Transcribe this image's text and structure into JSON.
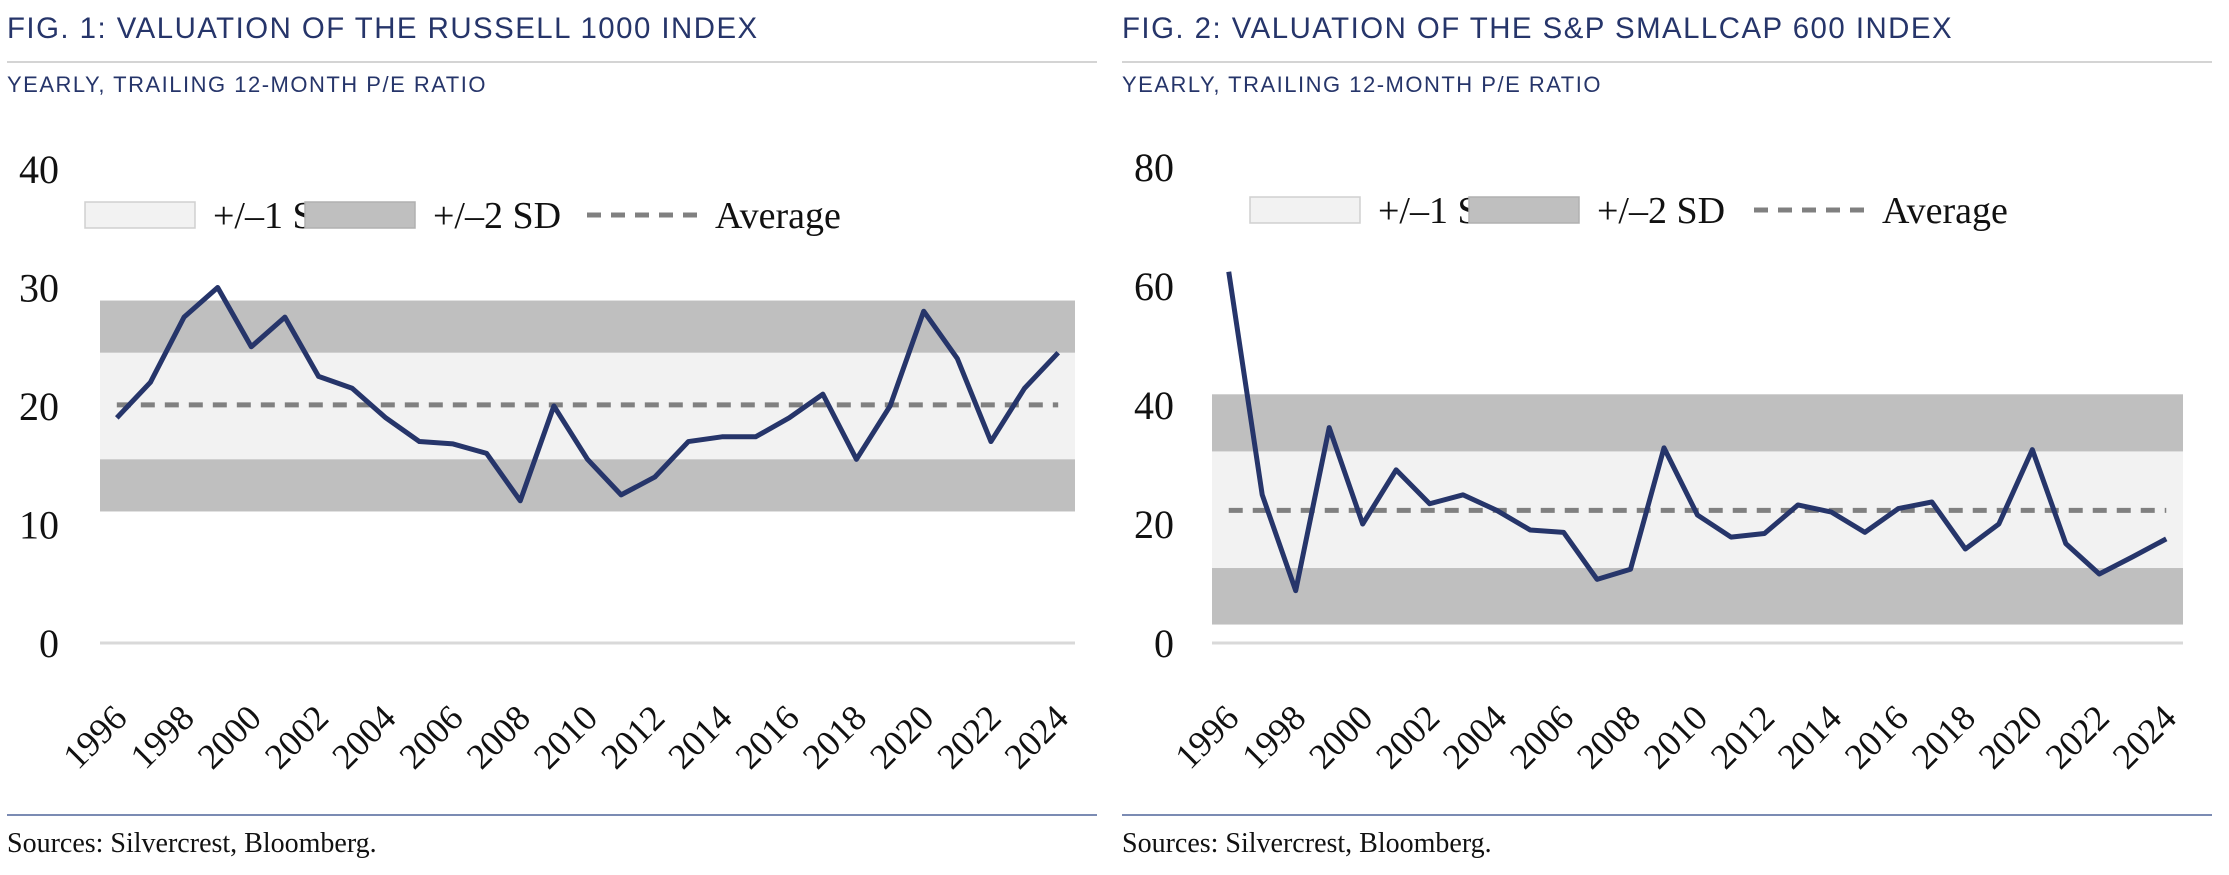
{
  "panels": [
    {
      "title": "FIG. 1: VALUATION OF THE RUSSELL 1000 INDEX",
      "subtitle": "YEARLY, TRAILING 12-MONTH P/E RATIO",
      "source": "Sources: Silvercrest, Bloomberg."
    },
    {
      "title": "FIG. 2: VALUATION OF THE S&P SMALLCAP 600 INDEX",
      "subtitle": "YEARLY, TRAILING 12-MONTH P/E RATIO",
      "source": "Sources: Silvercrest, Bloomberg."
    }
  ],
  "colors": {
    "line": "#26356a",
    "band1": "#f2f2f2",
    "band2": "#bfbfbf",
    "average": "#808080",
    "title": "#26356a"
  },
  "chart_data": [
    {
      "type": "line",
      "x": [
        1996,
        1997,
        1998,
        1999,
        2000,
        2001,
        2002,
        2003,
        2004,
        2005,
        2006,
        2007,
        2008,
        2009,
        2010,
        2011,
        2012,
        2013,
        2014,
        2015,
        2016,
        2017,
        2018,
        2019,
        2020,
        2021,
        2022,
        2023,
        2024
      ],
      "values": [
        19,
        22,
        27.5,
        30,
        25,
        27.5,
        22.5,
        21.5,
        19,
        17,
        16.8,
        16,
        12,
        20,
        15.5,
        12.5,
        14,
        17,
        17.4,
        17.4,
        19,
        21,
        15.5,
        20,
        28,
        24,
        17,
        21.5,
        24.5
      ],
      "average": 20.1,
      "band_1sd": [
        15.5,
        24.5
      ],
      "band_2sd": [
        11.1,
        28.9
      ],
      "ylim": [
        0,
        40
      ],
      "yticks": [
        "0",
        "10",
        "20",
        "30",
        "40"
      ],
      "xticks": [
        "1996",
        "1998",
        "2000",
        "2002",
        "2004",
        "2006",
        "2008",
        "2010",
        "2012",
        "2014",
        "2016",
        "2018",
        "2020",
        "2022",
        "2024"
      ],
      "legend": [
        "+/–1 SD",
        "+/–2 SD",
        "Average"
      ],
      "legend_position": "top",
      "grid": false
    },
    {
      "type": "line",
      "x": [
        1996,
        1997,
        1998,
        1999,
        2000,
        2001,
        2002,
        2003,
        2004,
        2005,
        2006,
        2007,
        2008,
        2009,
        2010,
        2011,
        2012,
        2013,
        2014,
        2015,
        2016,
        2017,
        2018,
        2019,
        2020,
        2021,
        2022,
        2023,
        2024
      ],
      "values": [
        62.4,
        24.9,
        8.8,
        36.2,
        20,
        29.1,
        23.4,
        24.9,
        22.3,
        19,
        18.6,
        10.7,
        12.4,
        32.8,
        21.5,
        17.8,
        18.4,
        23.2,
        22,
        18.6,
        22.6,
        23.7,
        15.8,
        20,
        32.5,
        16.7,
        11.6,
        14.5,
        17.5
      ],
      "average": 22.3,
      "band_1sd": [
        12.6,
        32.2
      ],
      "band_2sd": [
        3.1,
        41.8
      ],
      "ylim": [
        0,
        80
      ],
      "yticks": [
        "0",
        "20",
        "40",
        "60",
        "80"
      ],
      "xticks": [
        "1996",
        "1998",
        "2000",
        "2002",
        "2004",
        "2006",
        "2008",
        "2010",
        "2012",
        "2014",
        "2016",
        "2018",
        "2020",
        "2022",
        "2024"
      ],
      "legend": [
        "+/–1 SD",
        "+/–2 SD",
        "Average"
      ],
      "legend_position": "top",
      "grid": false
    }
  ]
}
